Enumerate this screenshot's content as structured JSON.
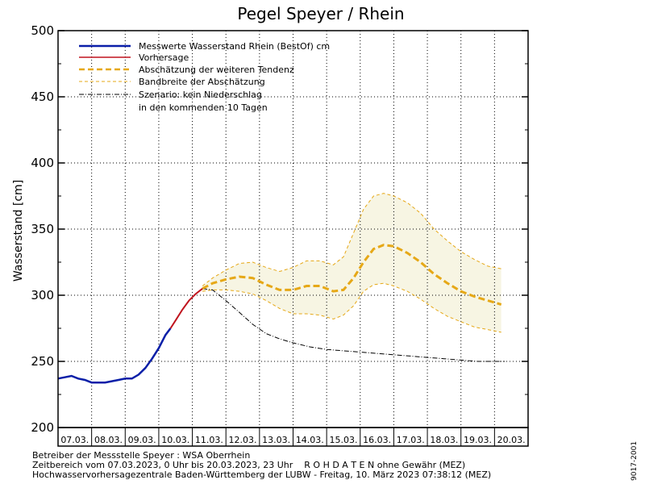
{
  "chart_data": {
    "type": "line",
    "title": "Pegel Speyer / Rhein",
    "xlabel": "",
    "ylabel": "Wasserstand [cm]",
    "ylim": [
      200,
      500
    ],
    "yticks": [
      200,
      250,
      300,
      350,
      400,
      450,
      500
    ],
    "xlim": [
      0,
      14
    ],
    "date_labels": [
      "07.03.",
      "08.03.",
      "09.03.",
      "10.03.",
      "11.03.",
      "12.03.",
      "13.03.",
      "14.03.",
      "15.03.",
      "16.03.",
      "17.03.",
      "18.03.",
      "19.03.",
      "20.03."
    ],
    "grid": true,
    "legend_position": "top-left",
    "legend": [
      {
        "key": "measured",
        "label": "Messwerte Wasserstand Rhein (BestOf)  cm"
      },
      {
        "key": "forecast",
        "label": "Vorhersage"
      },
      {
        "key": "tendency",
        "label": "Abschätzung der weiteren Tendenz"
      },
      {
        "key": "band",
        "label": "Bandbreite der Abschätzung"
      },
      {
        "key": "scenario",
        "label": "Szenario: kein Niederschlag"
      },
      {
        "key": "scenario2",
        "label": "in den kommenden 10 Tagen"
      }
    ],
    "series": [
      {
        "key": "measured",
        "name": "Messwerte Wasserstand Rhein (BestOf)  cm",
        "color": "#0a1fa8",
        "x": [
          0,
          0.2,
          0.4,
          0.6,
          0.8,
          1.0,
          1.2,
          1.4,
          1.6,
          1.8,
          2.0,
          2.2,
          2.4,
          2.6,
          2.8,
          3.0,
          3.2,
          3.35
        ],
        "y": [
          237,
          238,
          239,
          237,
          236,
          234,
          234,
          234,
          235,
          236,
          237,
          237,
          240,
          245,
          252,
          260,
          270,
          275
        ]
      },
      {
        "key": "forecast",
        "name": "Vorhersage",
        "color": "#c0141e",
        "x": [
          3.35,
          3.5,
          3.7,
          3.9,
          4.1,
          4.3
        ],
        "y": [
          275,
          281,
          289,
          296,
          301,
          305
        ]
      },
      {
        "key": "tendency",
        "name": "Abschätzung der weiteren Tendenz",
        "color": "#e6a817",
        "x": [
          4.3,
          4.6,
          5.0,
          5.4,
          5.8,
          6.2,
          6.6,
          7.0,
          7.4,
          7.8,
          8.2,
          8.5,
          8.8,
          9.1,
          9.4,
          9.7,
          10.0,
          10.4,
          10.8,
          11.2,
          11.6,
          12.0,
          12.4,
          12.8,
          13.2
        ],
        "y": [
          305,
          309,
          312,
          314,
          313,
          308,
          304,
          304,
          307,
          307,
          303,
          304,
          313,
          325,
          335,
          338,
          337,
          332,
          325,
          316,
          309,
          303,
          299,
          296,
          293
        ]
      },
      {
        "key": "band_upper",
        "name": "Bandbreite der Abschätzung",
        "color": "#e6a817",
        "x": [
          4.3,
          4.6,
          5.0,
          5.4,
          5.8,
          6.2,
          6.6,
          7.0,
          7.4,
          7.8,
          8.2,
          8.5,
          8.8,
          9.1,
          9.4,
          9.7,
          10.0,
          10.4,
          10.8,
          11.2,
          11.6,
          12.0,
          12.4,
          12.8,
          13.2
        ],
        "y": [
          307,
          313,
          319,
          324,
          325,
          321,
          318,
          321,
          326,
          326,
          323,
          329,
          347,
          365,
          375,
          377,
          375,
          370,
          362,
          350,
          341,
          333,
          327,
          322,
          320
        ]
      },
      {
        "key": "band_lower",
        "name": "Bandbreite der Abschätzung",
        "color": "#e6a817",
        "x": [
          4.3,
          4.6,
          5.0,
          5.4,
          5.8,
          6.2,
          6.6,
          7.0,
          7.4,
          7.8,
          8.2,
          8.5,
          8.8,
          9.1,
          9.4,
          9.7,
          10.0,
          10.4,
          10.8,
          11.2,
          11.6,
          12.0,
          12.4,
          12.8,
          13.2
        ],
        "y": [
          303,
          304,
          304,
          303,
          301,
          296,
          290,
          286,
          286,
          285,
          282,
          285,
          292,
          303,
          308,
          309,
          307,
          303,
          297,
          290,
          284,
          280,
          276,
          274,
          272
        ]
      },
      {
        "key": "scenario",
        "name": "Szenario: kein Niederschlag",
        "color": "#000000",
        "x": [
          4.3,
          4.6,
          5.0,
          5.4,
          5.8,
          6.2,
          6.6,
          7.0,
          7.5,
          8.0,
          8.5,
          9.0,
          9.5,
          10.0,
          10.5,
          11.0,
          11.5,
          12.0,
          12.5,
          13.0,
          13.3
        ],
        "y": [
          305,
          304,
          296,
          287,
          278,
          271,
          267,
          264,
          261,
          259,
          258,
          257,
          256,
          255,
          254,
          253,
          252,
          251,
          250,
          250,
          250
        ]
      }
    ]
  },
  "footer": {
    "line1": "Betreiber der Messstelle Speyer : WSA Oberrhein",
    "line2": "Zeitbereich vom 07.03.2023, 0 Uhr bis 20.03.2023, 23 Uhr    R O H D A T E N ohne Gewähr (MEZ)",
    "line3": "Hochwasservorhersagezentrale Baden-Württemberg der LUBW - Freitag, 10. März 2023 07:38:12 (MEZ)",
    "code": "9017-2001"
  },
  "colors": {
    "measured": "#0a1fa8",
    "forecast": "#c0141e",
    "tendency": "#e6a817",
    "band_fill": "#f7f5e3",
    "scenario": "#000000"
  }
}
